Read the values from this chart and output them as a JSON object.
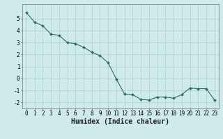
{
  "x": [
    0,
    1,
    2,
    3,
    4,
    5,
    6,
    7,
    8,
    9,
    10,
    11,
    12,
    13,
    14,
    15,
    16,
    17,
    18,
    19,
    20,
    21,
    22,
    23
  ],
  "y": [
    5.5,
    4.7,
    4.4,
    3.7,
    3.6,
    3.0,
    2.9,
    2.6,
    2.2,
    1.9,
    1.3,
    -0.05,
    -1.3,
    -1.35,
    -1.75,
    -1.8,
    -1.55,
    -1.55,
    -1.65,
    -1.35,
    -0.8,
    -0.85,
    -0.85,
    -1.8
  ],
  "line_color": "#2d6b5e",
  "marker": "D",
  "marker_size": 2.0,
  "background_color": "#ceeaea",
  "grid_color": "#aacece",
  "xlabel": "Humidex (Indice chaleur)",
  "xlim": [
    -0.5,
    23.5
  ],
  "ylim": [
    -2.5,
    6.2
  ],
  "yticks": [
    -2,
    -1,
    0,
    1,
    2,
    3,
    4,
    5
  ],
  "xticks": [
    0,
    1,
    2,
    3,
    4,
    5,
    6,
    7,
    8,
    9,
    10,
    11,
    12,
    13,
    14,
    15,
    16,
    17,
    18,
    19,
    20,
    21,
    22,
    23
  ],
  "tick_fontsize": 5.5,
  "xlabel_fontsize": 7.0
}
